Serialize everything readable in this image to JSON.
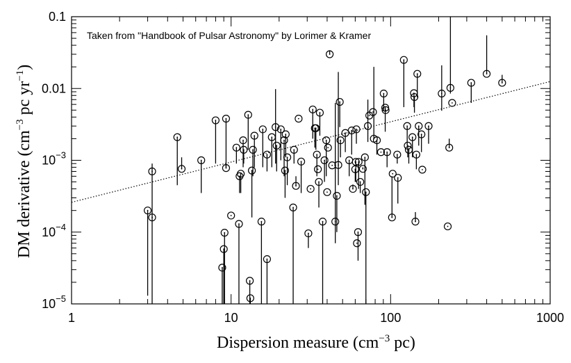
{
  "chart_data": {
    "type": "scatter",
    "annotation": "Taken from \"Handbook of Pulsar Astronomy\" by Lorimer & Kramer",
    "xlabel_main": "Dispersion measure (cm",
    "xlabel_sup": "−3",
    "xlabel_end": " pc)",
    "ylabel_main": "DM derivative (cm",
    "ylabel_sup1": "−3",
    "ylabel_mid": " pc yr",
    "ylabel_sup2": "−1",
    "ylabel_end": ")",
    "x_scale": "log",
    "y_scale": "log",
    "xlim": [
      1,
      1000
    ],
    "ylim": [
      1e-05,
      0.1
    ],
    "x_tick_labels": [
      "1",
      "10",
      "100",
      "1000"
    ],
    "x_tick_values": [
      1,
      10,
      100,
      1000
    ],
    "y_tick_labels": [
      {
        "value": 1e-05,
        "base": "10",
        "exp": "−5"
      },
      {
        "value": 0.0001,
        "base": "10",
        "exp": "−4"
      },
      {
        "value": 0.001,
        "base": "10",
        "exp": "−3"
      },
      {
        "value": 0.01,
        "text": "0.01"
      },
      {
        "value": 0.1,
        "text": "0.1"
      }
    ],
    "fit_line": {
      "x": [
        1,
        1000
      ],
      "y": [
        0.00026,
        0.0125
      ],
      "style": "dotted"
    },
    "points": [
      {
        "x": 3.0,
        "y": 0.0002,
        "lo": 1.3e-05,
        "hi": 0.0002
      },
      {
        "x": 3.2,
        "y": 0.00016,
        "lo": 1e-05,
        "hi": 0.00016
      },
      {
        "x": 3.2,
        "y": 0.0007,
        "lo": 0.00016,
        "hi": 0.0009
      },
      {
        "x": 4.6,
        "y": 0.0021,
        "lo": 0.00045,
        "hi": 0.0021
      },
      {
        "x": 4.9,
        "y": 0.00076,
        "lo": 0.00076,
        "hi": 0.0011
      },
      {
        "x": 6.5,
        "y": 0.001,
        "lo": 0.00035,
        "hi": 0.001
      },
      {
        "x": 8.0,
        "y": 0.0036,
        "lo": 0.0009,
        "hi": 0.0036
      },
      {
        "x": 8.8,
        "y": 3.2e-05,
        "lo": 1e-05,
        "hi": 3.2e-05
      },
      {
        "x": 9.0,
        "y": 5.8e-05,
        "lo": 1e-05,
        "hi": 5.8e-05
      },
      {
        "x": 9.1,
        "y": 9.8e-05,
        "lo": 1e-05,
        "hi": 9.8e-05
      },
      {
        "x": 9.3,
        "y": 0.0038,
        "lo": 0.0008,
        "hi": 0.0038
      },
      {
        "x": 9.3,
        "y": 0.00078,
        "lo": 0.00078,
        "hi": 0.0009
      },
      {
        "x": 10.0,
        "y": 0.00017,
        "lo": 0.00017,
        "hi": 0.00017
      },
      {
        "x": 10.8,
        "y": 0.0015,
        "lo": 0.0009,
        "hi": 0.0015
      },
      {
        "x": 11.3,
        "y": 0.0006,
        "lo": 0.00035,
        "hi": 0.0006
      },
      {
        "x": 11.5,
        "y": 0.00065,
        "lo": 0.00035,
        "hi": 0.00065
      },
      {
        "x": 11.2,
        "y": 0.00013,
        "lo": 1e-05,
        "hi": 0.00013
      },
      {
        "x": 11.9,
        "y": 0.0019,
        "lo": 0.0008,
        "hi": 0.0019
      },
      {
        "x": 12.0,
        "y": 0.0014,
        "lo": 0.0009,
        "hi": 0.0014
      },
      {
        "x": 12.8,
        "y": 0.0043,
        "lo": 0.0014,
        "hi": 0.0043
      },
      {
        "x": 13.1,
        "y": 2.1e-05,
        "lo": 1e-05,
        "hi": 2.1e-05
      },
      {
        "x": 13.2,
        "y": 1.2e-05,
        "lo": 1e-05,
        "hi": 1.2e-05
      },
      {
        "x": 13.5,
        "y": 0.00072,
        "lo": 0.00016,
        "hi": 0.00072
      },
      {
        "x": 13.7,
        "y": 0.0014,
        "lo": 0.0006,
        "hi": 0.0014
      },
      {
        "x": 14.0,
        "y": 0.0022,
        "lo": 0.0008,
        "hi": 0.0022
      },
      {
        "x": 15.5,
        "y": 0.00014,
        "lo": 1e-05,
        "hi": 0.00014
      },
      {
        "x": 15.8,
        "y": 0.0027,
        "lo": 0.0008,
        "hi": 0.0027
      },
      {
        "x": 16.8,
        "y": 4.2e-05,
        "lo": 1e-05,
        "hi": 4.2e-05
      },
      {
        "x": 16.8,
        "y": 0.0012,
        "lo": 0.0007,
        "hi": 0.0012
      },
      {
        "x": 18.0,
        "y": 0.0021,
        "lo": 0.0008,
        "hi": 0.0021
      },
      {
        "x": 19.0,
        "y": 0.0029,
        "lo": 0.0009,
        "hi": 0.0098
      },
      {
        "x": 19.3,
        "y": 0.0016,
        "lo": 0.0007,
        "hi": 0.0016
      },
      {
        "x": 20.5,
        "y": 0.0027,
        "lo": 0.001,
        "hi": 0.0027
      },
      {
        "x": 21.5,
        "y": 0.0019,
        "lo": 0.0006,
        "hi": 0.0019
      },
      {
        "x": 21.8,
        "y": 0.00072,
        "lo": 0.0003,
        "hi": 0.00072
      },
      {
        "x": 22.0,
        "y": 0.0023,
        "lo": 0.0011,
        "hi": 0.0023
      },
      {
        "x": 22.5,
        "y": 0.0011,
        "lo": 0.00045,
        "hi": 0.0011
      },
      {
        "x": 24.5,
        "y": 0.00022,
        "lo": 1e-05,
        "hi": 0.00022
      },
      {
        "x": 24.8,
        "y": 0.0014,
        "lo": 0.0009,
        "hi": 0.0014
      },
      {
        "x": 25.5,
        "y": 0.00044,
        "lo": 0.00044,
        "hi": 0.0006
      },
      {
        "x": 26.5,
        "y": 0.0038,
        "lo": 0.0038,
        "hi": 0.0038
      },
      {
        "x": 27.5,
        "y": 0.00096,
        "lo": 0.00035,
        "hi": 0.00096
      },
      {
        "x": 30.5,
        "y": 9.6e-05,
        "lo": 6e-05,
        "hi": 9.6e-05
      },
      {
        "x": 31.5,
        "y": 0.0004,
        "lo": 0.0004,
        "hi": 0.0004
      },
      {
        "x": 32.5,
        "y": 0.0051,
        "lo": 0.002,
        "hi": 0.0051
      },
      {
        "x": 33.5,
        "y": 0.0028,
        "lo": 0.0015,
        "hi": 0.0028
      },
      {
        "x": 34.0,
        "y": 0.0028,
        "lo": 0.0014,
        "hi": 0.0028
      },
      {
        "x": 34.5,
        "y": 0.0012,
        "lo": 0.0006,
        "hi": 0.0012
      },
      {
        "x": 35.0,
        "y": 0.00075,
        "lo": 0.00075,
        "hi": 0.00075
      },
      {
        "x": 35.5,
        "y": 0.0005,
        "lo": 0.00022,
        "hi": 0.0005
      },
      {
        "x": 36.0,
        "y": 0.0046,
        "lo": 0.0022,
        "hi": 0.0046
      },
      {
        "x": 37.5,
        "y": 0.00014,
        "lo": 1e-05,
        "hi": 0.00014
      },
      {
        "x": 38.5,
        "y": 0.001,
        "lo": 0.0005,
        "hi": 0.001
      },
      {
        "x": 39.5,
        "y": 0.0019,
        "lo": 0.0006,
        "hi": 0.0019
      },
      {
        "x": 40.0,
        "y": 0.00036,
        "lo": 0.00036,
        "hi": 0.00036
      },
      {
        "x": 40.5,
        "y": 0.0015,
        "lo": 0.0015,
        "hi": 0.0015
      },
      {
        "x": 41.5,
        "y": 0.03,
        "lo": 0.03,
        "hi": 0.034
      },
      {
        "x": 43.0,
        "y": 0.00085,
        "lo": 0.00085,
        "hi": 0.00085
      },
      {
        "x": 45.0,
        "y": 0.00014,
        "lo": 7e-05,
        "hi": 0.0063
      },
      {
        "x": 46.0,
        "y": 0.00032,
        "lo": 0.0001,
        "hi": 0.00032
      },
      {
        "x": 47.0,
        "y": 0.00086,
        "lo": 0.00045,
        "hi": 0.017
      },
      {
        "x": 48.0,
        "y": 0.0065,
        "lo": 0.0029,
        "hi": 0.0065
      },
      {
        "x": 48.5,
        "y": 0.0019,
        "lo": 0.0011,
        "hi": 0.0019
      },
      {
        "x": 52.0,
        "y": 0.0024,
        "lo": 0.0013,
        "hi": 0.0024
      },
      {
        "x": 55.0,
        "y": 0.001,
        "lo": 0.0006,
        "hi": 0.001
      },
      {
        "x": 57.0,
        "y": 0.0026,
        "lo": 0.0012,
        "hi": 0.0026
      },
      {
        "x": 58.0,
        "y": 0.0004,
        "lo": 0.0004,
        "hi": 0.00046
      },
      {
        "x": 60.0,
        "y": 0.00075,
        "lo": 0.0005,
        "hi": 0.00075
      },
      {
        "x": 60.5,
        "y": 0.00095,
        "lo": 0.0005,
        "hi": 0.00095
      },
      {
        "x": 61.0,
        "y": 0.0027,
        "lo": 0.0017,
        "hi": 0.0027
      },
      {
        "x": 61.5,
        "y": 7e-05,
        "lo": 7e-05,
        "hi": 7e-05
      },
      {
        "x": 62.5,
        "y": 0.0001,
        "lo": 4e-05,
        "hi": 0.0001
      },
      {
        "x": 63.0,
        "y": 0.00095,
        "lo": 0.0004,
        "hi": 0.00095
      },
      {
        "x": 64.5,
        "y": 0.0005,
        "lo": 0.00035,
        "hi": 0.0005
      },
      {
        "x": 67.0,
        "y": 0.00076,
        "lo": 0.00076,
        "hi": 0.0008
      },
      {
        "x": 69.0,
        "y": 0.0011,
        "lo": 0.00024,
        "hi": 0.0011
      },
      {
        "x": 70.0,
        "y": 0.00036,
        "lo": 1e-05,
        "hi": 0.00036
      },
      {
        "x": 72.0,
        "y": 0.003,
        "lo": 0.0018,
        "hi": 0.007
      },
      {
        "x": 73.5,
        "y": 0.0042,
        "lo": 0.0042,
        "hi": 0.0042
      },
      {
        "x": 77.5,
        "y": 0.0047,
        "lo": 0.0047,
        "hi": 0.0047
      },
      {
        "x": 78.5,
        "y": 0.002,
        "lo": 0.002,
        "hi": 0.02
      },
      {
        "x": 82.0,
        "y": 0.0019,
        "lo": 0.0012,
        "hi": 0.0019
      },
      {
        "x": 87.0,
        "y": 0.0013,
        "lo": 0.0013,
        "hi": 0.0013
      },
      {
        "x": 90.5,
        "y": 0.0085,
        "lo": 0.0049,
        "hi": 0.0085
      },
      {
        "x": 92.5,
        "y": 0.0054,
        "lo": 0.0025,
        "hi": 0.0054
      },
      {
        "x": 93.0,
        "y": 0.005,
        "lo": 0.005,
        "hi": 0.005
      },
      {
        "x": 95.0,
        "y": 0.0013,
        "lo": 0.0008,
        "hi": 0.0013
      },
      {
        "x": 102.0,
        "y": 0.00016,
        "lo": 0.00016,
        "hi": 0.0006
      },
      {
        "x": 103.0,
        "y": 0.00065,
        "lo": 0.00065,
        "hi": 0.00065
      },
      {
        "x": 110.0,
        "y": 0.0012,
        "lo": 0.0009,
        "hi": 0.0012
      },
      {
        "x": 111.0,
        "y": 0.00057,
        "lo": 0.00025,
        "hi": 0.00057
      },
      {
        "x": 121.0,
        "y": 0.025,
        "lo": 0.0055,
        "hi": 0.025
      },
      {
        "x": 127.0,
        "y": 0.003,
        "lo": 0.0016,
        "hi": 0.003
      },
      {
        "x": 128.0,
        "y": 0.0016,
        "lo": 0.0011,
        "hi": 0.0016
      },
      {
        "x": 130.0,
        "y": 0.0014,
        "lo": 0.0009,
        "hi": 0.0014
      },
      {
        "x": 137.0,
        "y": 0.0021,
        "lo": 0.0011,
        "hi": 0.0021
      },
      {
        "x": 140.0,
        "y": 0.0086,
        "lo": 0.0055,
        "hi": 0.0086
      },
      {
        "x": 141.0,
        "y": 0.0076,
        "lo": 0.0046,
        "hi": 0.0076
      },
      {
        "x": 143.0,
        "y": 0.00014,
        "lo": 0.00014,
        "hi": 0.00019
      },
      {
        "x": 145.0,
        "y": 0.0012,
        "lo": 0.00075,
        "hi": 0.0012
      },
      {
        "x": 147.0,
        "y": 0.016,
        "lo": 0.0075,
        "hi": 0.016
      },
      {
        "x": 150.0,
        "y": 0.003,
        "lo": 0.0016,
        "hi": 0.003
      },
      {
        "x": 156.0,
        "y": 0.0023,
        "lo": 0.0013,
        "hi": 0.0023
      },
      {
        "x": 158.0,
        "y": 0.00074,
        "lo": 0.00074,
        "hi": 0.00074
      },
      {
        "x": 173.0,
        "y": 0.003,
        "lo": 0.0017,
        "hi": 0.003
      },
      {
        "x": 209.0,
        "y": 0.0085,
        "lo": 0.0049,
        "hi": 0.021
      },
      {
        "x": 228.0,
        "y": 0.00012,
        "lo": 0.00012,
        "hi": 0.00012
      },
      {
        "x": 233.0,
        "y": 0.0015,
        "lo": 0.0015,
        "hi": 0.002
      },
      {
        "x": 237.0,
        "y": 0.0102,
        "lo": 0.0085,
        "hi": 0.1
      },
      {
        "x": 243.0,
        "y": 0.0063,
        "lo": 0.0063,
        "hi": 0.0063
      },
      {
        "x": 320.0,
        "y": 0.012,
        "lo": 0.0063,
        "hi": 0.012
      },
      {
        "x": 400.0,
        "y": 0.016,
        "lo": 0.016,
        "hi": 0.055
      },
      {
        "x": 500.0,
        "y": 0.012,
        "lo": 0.012,
        "hi": 0.0155
      }
    ]
  }
}
